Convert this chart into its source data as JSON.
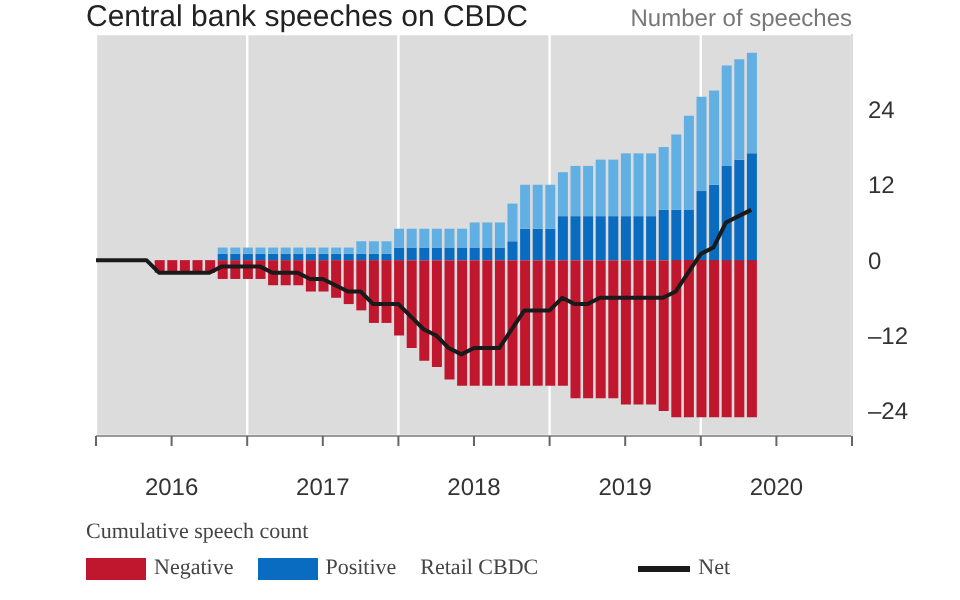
{
  "chart_data": {
    "type": "bar",
    "title": "Central bank speeches on CBDC",
    "ylabel": "Number of speeches",
    "legend_title": "Cumulative speech count",
    "annotations": [
      "Retail CBDC"
    ],
    "stacked": true,
    "grid": true,
    "legend": "bottom",
    "x": [
      "2016-01",
      "2016-02",
      "2016-03",
      "2016-04",
      "2016-05",
      "2016-06",
      "2016-07",
      "2016-08",
      "2016-09",
      "2016-10",
      "2016-11",
      "2016-12",
      "2017-01",
      "2017-02",
      "2017-03",
      "2017-04",
      "2017-05",
      "2017-06",
      "2017-07",
      "2017-08",
      "2017-09",
      "2017-10",
      "2017-11",
      "2017-12",
      "2018-01",
      "2018-02",
      "2018-03",
      "2018-04",
      "2018-05",
      "2018-06",
      "2018-07",
      "2018-08",
      "2018-09",
      "2018-10",
      "2018-11",
      "2018-12",
      "2019-01",
      "2019-02",
      "2019-03",
      "2019-04",
      "2019-05",
      "2019-06",
      "2019-07",
      "2019-08",
      "2019-09",
      "2019-10",
      "2019-11",
      "2019-12",
      "2020-01",
      "2020-02",
      "2020-03",
      "2020-04",
      "2020-05"
    ],
    "series": [
      {
        "name": "Negative",
        "color": "#c0172f",
        "values": [
          null,
          null,
          null,
          null,
          null,
          -2,
          -2,
          -2,
          -2,
          -2,
          -3,
          -3,
          -3,
          -3,
          -4,
          -4,
          -4,
          -5,
          -5,
          -6,
          -7,
          -8,
          -10,
          -10,
          -12,
          -14,
          -16,
          -17,
          -19,
          -20,
          -20,
          -20,
          -20,
          -20,
          -20,
          -20,
          -20,
          -20,
          -22,
          -22,
          -22,
          -22,
          -23,
          -23,
          -23,
          -24,
          -25,
          -25,
          -25,
          -25,
          -25,
          -25,
          -25
        ]
      },
      {
        "name": "Positive",
        "color": "#0a6cc0",
        "values": [
          null,
          null,
          null,
          null,
          null,
          null,
          null,
          null,
          null,
          null,
          1,
          1,
          1,
          1,
          1,
          1,
          1,
          1,
          1,
          1,
          1,
          1,
          1,
          1,
          2,
          2,
          2,
          2,
          2,
          2,
          2,
          2,
          2,
          3,
          5,
          5,
          5,
          7,
          7,
          7,
          7,
          7,
          7,
          7,
          7,
          8,
          8,
          8,
          11,
          12,
          15,
          16,
          17
        ]
      },
      {
        "color": "#62b0e3",
        "values": [
          null,
          null,
          null,
          null,
          null,
          null,
          null,
          null,
          null,
          null,
          1,
          1,
          1,
          1,
          1,
          1,
          1,
          1,
          1,
          1,
          1,
          2,
          2,
          2,
          3,
          3,
          3,
          3,
          3,
          3,
          4,
          4,
          4,
          6,
          7,
          7,
          7,
          7,
          8,
          8,
          9,
          9,
          10,
          10,
          10,
          10,
          12,
          15,
          15,
          15,
          16,
          16,
          16
        ]
      },
      {
        "name": "Net",
        "type": "line",
        "color": "#1a1a1a",
        "marker": "none",
        "values": [
          0,
          0,
          0,
          0,
          0,
          -2,
          -2,
          -2,
          -2,
          -2,
          -1,
          -1,
          -1,
          -1,
          -2,
          -2,
          -2,
          -3,
          -3,
          -4,
          -5,
          -5,
          -7,
          -7,
          -7,
          -9,
          -11,
          -12,
          -14,
          -15,
          -14,
          -14,
          -14,
          -11,
          -8,
          -8,
          -8,
          -6,
          -7,
          -7,
          -6,
          -6,
          -6,
          -6,
          -6,
          -6,
          -5,
          -2,
          1,
          2,
          6,
          7,
          8
        ]
      }
    ],
    "xlim": [
      "2016-01",
      "2021-01"
    ],
    "xticks": [
      {
        "value": "2016-01",
        "label": null
      },
      {
        "value": "2016-07",
        "label": "2016"
      },
      {
        "value": "2017-01",
        "label": null
      },
      {
        "value": "2017-07",
        "label": "2017"
      },
      {
        "value": "2018-01",
        "label": null
      },
      {
        "value": "2018-07",
        "label": "2018"
      },
      {
        "value": "2019-01",
        "label": null
      },
      {
        "value": "2019-07",
        "label": "2019"
      },
      {
        "value": "2020-01",
        "label": null
      },
      {
        "value": "2020-07",
        "label": "2020"
      },
      {
        "value": "2021-01",
        "label": null
      }
    ],
    "ylim": [
      -28,
      36
    ],
    "yticks": [
      {
        "value": -24,
        "label": "–24"
      },
      {
        "value": -12,
        "label": "–12"
      },
      0,
      12,
      24
    ]
  }
}
